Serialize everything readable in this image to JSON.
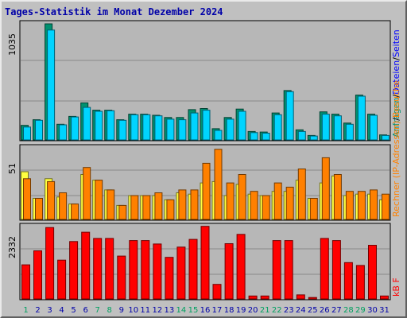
{
  "title": "Tages-Statistik im Monat Dezember 2024",
  "colors": {
    "background": "#c0c0c0",
    "plot_bg": "#b7b7b7",
    "grid": "#8a8a8a",
    "hits": "#009170",
    "files": "#00d4ff",
    "hosts": "#ffff40",
    "visits": "#ff8000",
    "kbytes": "#ff0000",
    "label_hits": "#009170",
    "label_files": "#0000ff",
    "label_visits": "#ff8000",
    "label_kb": "#ff0000",
    "label_sep": "#000000",
    "day_weekend": "#00a060",
    "day_weekday": "#0000a8"
  },
  "chart_data": [
    {
      "type": "bar",
      "ymax_label": "1035",
      "legend": [
        {
          "text": "Anfragen",
          "color_key": "label_hits"
        },
        {
          "text": "/",
          "color_key": "label_sep"
        },
        {
          "text": "Dateien",
          "color_key": "label_files"
        },
        {
          "text": "/",
          "color_key": "label_sep"
        },
        {
          "text": "Seiten",
          "color_key": "label_files"
        }
      ],
      "ylim": [
        0,
        1035
      ],
      "categories": [
        "1",
        "2",
        "3",
        "4",
        "5",
        "6",
        "7",
        "8",
        "9",
        "10",
        "11",
        "12",
        "13",
        "14",
        "15",
        "16",
        "17",
        "18",
        "19",
        "20",
        "21",
        "22",
        "23",
        "24",
        "25",
        "26",
        "27",
        "28",
        "29",
        "30",
        "31"
      ],
      "series": [
        {
          "name": "Anfragen",
          "color_key": "hits",
          "values": [
            130,
            180,
            1035,
            140,
            210,
            330,
            265,
            265,
            180,
            230,
            230,
            220,
            200,
            200,
            270,
            280,
            100,
            200,
            275,
            75,
            70,
            240,
            440,
            90,
            40,
            250,
            230,
            150,
            400,
            230,
            45
          ]
        },
        {
          "name": "Dateien",
          "color_key": "files",
          "values": [
            115,
            175,
            980,
            135,
            205,
            290,
            255,
            260,
            175,
            225,
            225,
            215,
            185,
            180,
            240,
            265,
            85,
            185,
            255,
            65,
            60,
            225,
            430,
            75,
            35,
            230,
            215,
            140,
            390,
            220,
            40
          ]
        },
        {
          "name": "Seiten",
          "color_key": "files",
          "values": [
            0,
            0,
            0,
            0,
            0,
            0,
            0,
            0,
            0,
            0,
            0,
            0,
            0,
            0,
            0,
            0,
            0,
            0,
            0,
            0,
            0,
            0,
            0,
            0,
            0,
            0,
            0,
            0,
            0,
            0,
            0
          ]
        }
      ]
    },
    {
      "type": "bar",
      "ymax_label": "51",
      "legend": [
        {
          "text": "Rechner (IP-Adressen)",
          "color_key": "label_visits"
        },
        {
          "text": "/",
          "color_key": "label_sep"
        },
        {
          "text": "Besuche",
          "color_key": "label_visits"
        }
      ],
      "ylim": [
        0,
        51
      ],
      "categories": [
        "1",
        "2",
        "3",
        "4",
        "5",
        "6",
        "7",
        "8",
        "9",
        "10",
        "11",
        "12",
        "13",
        "14",
        "15",
        "16",
        "17",
        "18",
        "19",
        "20",
        "21",
        "22",
        "23",
        "24",
        "25",
        "26",
        "27",
        "28",
        "29",
        "30",
        "31"
      ],
      "series": [
        {
          "name": "Rechner",
          "color_key": "hosts",
          "values": [
            34,
            15,
            29,
            16,
            11,
            32,
            28,
            21,
            10,
            17,
            17,
            17,
            14,
            19,
            18,
            26,
            27,
            17,
            25,
            18,
            17,
            20,
            20,
            28,
            15,
            26,
            31,
            17,
            18,
            18,
            14
          ]
        },
        {
          "name": "Besuche",
          "color_key": "visits",
          "values": [
            29,
            15,
            27,
            19,
            11,
            37,
            28,
            21,
            10,
            17,
            17,
            19,
            14,
            21,
            21,
            40,
            50,
            26,
            32,
            20,
            17,
            26,
            23,
            36,
            15,
            44,
            32,
            20,
            20,
            21,
            18
          ]
        }
      ]
    },
    {
      "type": "bar",
      "ymax_label": "2332",
      "legend": [
        {
          "text": "kB F",
          "color_key": "label_kb"
        }
      ],
      "ylim": [
        0,
        2332
      ],
      "categories": [
        "1",
        "2",
        "3",
        "4",
        "5",
        "6",
        "7",
        "8",
        "9",
        "10",
        "11",
        "12",
        "13",
        "14",
        "15",
        "16",
        "17",
        "18",
        "19",
        "20",
        "21",
        "22",
        "23",
        "24",
        "25",
        "26",
        "27",
        "28",
        "29",
        "30",
        "31"
      ],
      "series": [
        {
          "name": "kB F",
          "color_key": "kbytes",
          "values": [
            1100,
            1550,
            2300,
            1250,
            1850,
            2150,
            1950,
            1950,
            1380,
            1880,
            1880,
            1770,
            1340,
            1670,
            1920,
            2340,
            470,
            1780,
            2080,
            95,
            95,
            1880,
            1880,
            130,
            45,
            1950,
            1880,
            1170,
            1080,
            1730,
            95
          ]
        }
      ]
    }
  ],
  "xaxis": {
    "labels": [
      "1",
      "2",
      "3",
      "4",
      "5",
      "6",
      "7",
      "8",
      "9",
      "10",
      "11",
      "12",
      "13",
      "14",
      "15",
      "16",
      "17",
      "18",
      "19",
      "20",
      "21",
      "22",
      "23",
      "24",
      "25",
      "26",
      "27",
      "28",
      "29",
      "30",
      "31"
    ],
    "weekend_days": [
      1,
      7,
      8,
      14,
      15,
      21,
      22,
      28,
      29
    ]
  }
}
